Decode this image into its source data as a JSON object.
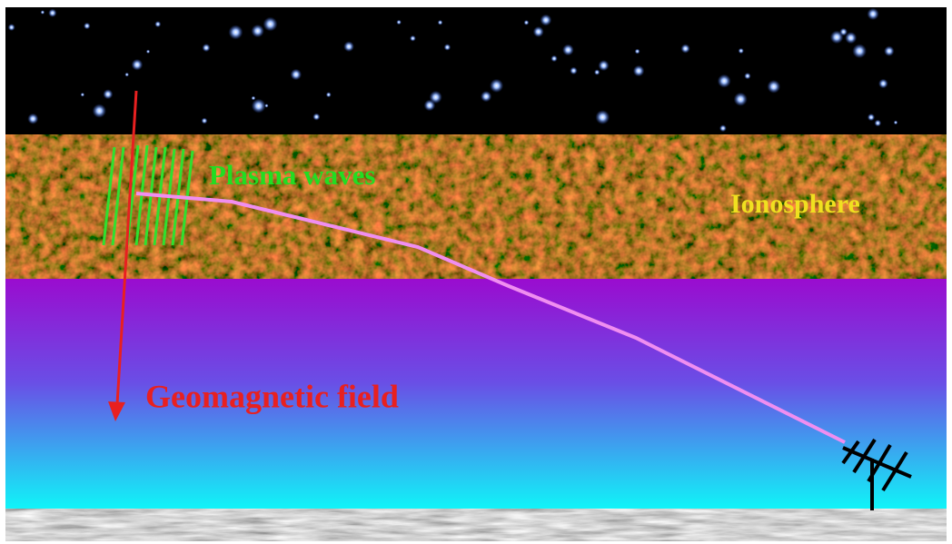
{
  "labels": {
    "plasma_waves": "Plasma waves",
    "ionosphere": "Ionosphere",
    "geomagnetic_field": "Geomagnetic field"
  }
}
